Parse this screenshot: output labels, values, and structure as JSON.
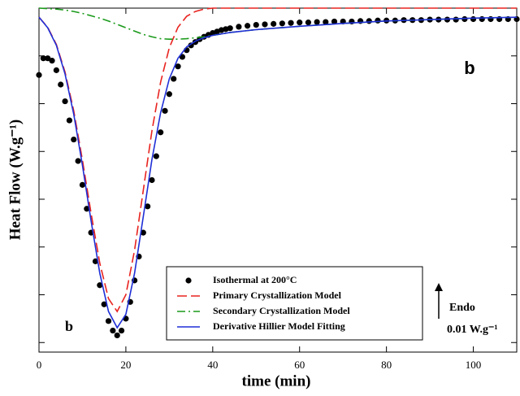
{
  "chart_data": {
    "type": "line",
    "x_label": "time (min)",
    "y_label": "Heat Flow (W.g⁻¹)",
    "xlim": [
      0,
      110
    ],
    "xticks": [
      0,
      20,
      40,
      60,
      80,
      100
    ],
    "ylim": [
      -0.072,
      0
    ],
    "yticks": [
      -0.07,
      -0.06,
      -0.05,
      -0.04,
      -0.03,
      -0.02,
      -0.01,
      0
    ],
    "annotations": {
      "panel_top": "b",
      "panel_bottom": "b",
      "direction": "Endo",
      "scale": "0.01 W.g⁻¹"
    },
    "series": [
      {
        "name": "Isothermal at 200°C",
        "color": "#000000",
        "style": "markers",
        "x": [
          0,
          1,
          2,
          3,
          4,
          5,
          6,
          7,
          8,
          9,
          10,
          11,
          12,
          13,
          14,
          15,
          16,
          17,
          18,
          19,
          20,
          21,
          22,
          23,
          24,
          25,
          26,
          27,
          28,
          29,
          30,
          31,
          32,
          33,
          34,
          35,
          36,
          37,
          38,
          39,
          40,
          41,
          42,
          43,
          44,
          46,
          48,
          50,
          52,
          54,
          56,
          58,
          60,
          62,
          64,
          66,
          68,
          70,
          72,
          74,
          76,
          78,
          80,
          82,
          84,
          86,
          88,
          90,
          92,
          94,
          96,
          98,
          100,
          102,
          104,
          106,
          108,
          110
        ],
        "values": [
          -0.014,
          -0.0105,
          -0.0105,
          -0.011,
          -0.013,
          -0.016,
          -0.0195,
          -0.0235,
          -0.0275,
          -0.032,
          -0.037,
          -0.042,
          -0.047,
          -0.053,
          -0.058,
          -0.062,
          -0.0655,
          -0.0675,
          -0.0685,
          -0.0675,
          -0.065,
          -0.0615,
          -0.057,
          -0.052,
          -0.047,
          -0.0415,
          -0.036,
          -0.031,
          -0.026,
          -0.0215,
          -0.018,
          -0.0148,
          -0.0122,
          -0.0102,
          -0.0088,
          -0.0078,
          -0.0071,
          -0.0065,
          -0.006,
          -0.0056,
          -0.0052,
          -0.0049,
          -0.0046,
          -0.0044,
          -0.0042,
          -0.0039,
          -0.0037,
          -0.0035,
          -0.0034,
          -0.0033,
          -0.0032,
          -0.0031,
          -0.003,
          -0.003,
          -0.0029,
          -0.0029,
          -0.0028,
          -0.0028,
          -0.0028,
          -0.0027,
          -0.0027,
          -0.0026,
          -0.0026,
          -0.0026,
          -0.0025,
          -0.0025,
          -0.0025,
          -0.0024,
          -0.0024,
          -0.0024,
          -0.0024,
          -0.0023,
          -0.0023,
          -0.0023,
          -0.0023,
          -0.0023,
          -0.0023,
          -0.0023
        ]
      },
      {
        "name": "Primary Crystallization Model",
        "color": "#e8231f",
        "style": "dashed",
        "x": [
          0,
          2,
          4,
          6,
          8,
          10,
          12,
          14,
          16,
          18,
          20,
          22,
          24,
          26,
          28,
          30,
          32,
          34,
          36,
          38,
          40,
          42,
          44,
          46,
          48,
          50,
          60,
          70,
          80,
          90,
          100,
          110
        ],
        "values": [
          -0.0019,
          -0.004,
          -0.0076,
          -0.0134,
          -0.0215,
          -0.0318,
          -0.043,
          -0.0534,
          -0.0608,
          -0.0635,
          -0.06,
          -0.0507,
          -0.0382,
          -0.0257,
          -0.0155,
          -0.0083,
          -0.004,
          -0.0017,
          -0.0007,
          -0.0002,
          0,
          0,
          0,
          0,
          0,
          0,
          0,
          0,
          0,
          0,
          0,
          0
        ]
      },
      {
        "name": "Secondary Crystallization Model",
        "color": "#1a9a1a",
        "style": "dashdot",
        "x": [
          0,
          2,
          4,
          6,
          8,
          10,
          12,
          14,
          16,
          18,
          20,
          22,
          24,
          26,
          28,
          30,
          32,
          34,
          36,
          38,
          40,
          42,
          44,
          46,
          48,
          50,
          60,
          70,
          80,
          90,
          100,
          110
        ],
        "values": [
          0,
          -0.0001,
          -0.0002,
          -0.0004,
          -0.0007,
          -0.0011,
          -0.0016,
          -0.0021,
          -0.0027,
          -0.0034,
          -0.0041,
          -0.0048,
          -0.0055,
          -0.006,
          -0.0064,
          -0.0065,
          -0.0065,
          -0.0064,
          -0.0062,
          -0.006,
          -0.0057,
          -0.0054,
          -0.0051,
          -0.0049,
          -0.0047,
          -0.0045,
          -0.0038,
          -0.0032,
          -0.0027,
          -0.0024,
          -0.0021,
          -0.0019
        ]
      },
      {
        "name": "Derivative Hillier Model Fitting",
        "color": "#1f2fd6",
        "style": "solid",
        "x": [
          0,
          2,
          4,
          6,
          8,
          10,
          12,
          14,
          16,
          18,
          20,
          22,
          24,
          26,
          28,
          30,
          32,
          34,
          36,
          38,
          40,
          42,
          44,
          46,
          48,
          50,
          60,
          70,
          80,
          90,
          100,
          110
        ],
        "values": [
          -0.0019,
          -0.0041,
          -0.0078,
          -0.0138,
          -0.0222,
          -0.0329,
          -0.0446,
          -0.0555,
          -0.0635,
          -0.0669,
          -0.0641,
          -0.0555,
          -0.0437,
          -0.0317,
          -0.0219,
          -0.0148,
          -0.0105,
          -0.0081,
          -0.0069,
          -0.0062,
          -0.0057,
          -0.0054,
          -0.0051,
          -0.0049,
          -0.0047,
          -0.0045,
          -0.0038,
          -0.0032,
          -0.0027,
          -0.0024,
          -0.0021,
          -0.0019
        ]
      }
    ]
  }
}
